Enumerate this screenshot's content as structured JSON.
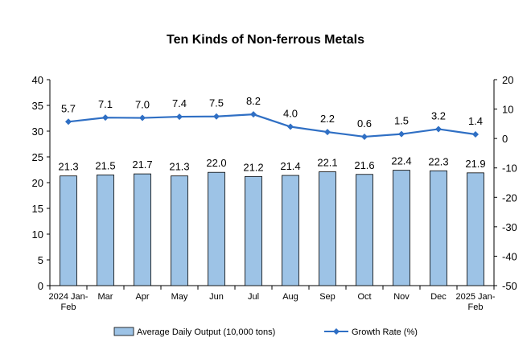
{
  "chart_data": {
    "type": "bar",
    "title": "Ten Kinds of Non-ferrous Metals",
    "categories": [
      [
        "2024 Jan-",
        "Feb"
      ],
      [
        "Mar"
      ],
      [
        "Apr"
      ],
      [
        "May"
      ],
      [
        "Jun"
      ],
      [
        "Jul"
      ],
      [
        "Aug"
      ],
      [
        "Sep"
      ],
      [
        "Oct"
      ],
      [
        "Nov"
      ],
      [
        "Dec"
      ],
      [
        "2025 Jan-",
        "Feb"
      ]
    ],
    "series": [
      {
        "name": "Average Daily Output (10,000 tons)",
        "type": "bar",
        "axis": "left",
        "values": [
          21.3,
          21.5,
          21.7,
          21.3,
          22.0,
          21.2,
          21.4,
          22.1,
          21.6,
          22.4,
          22.3,
          21.9
        ],
        "labels": [
          "21.3",
          "21.5",
          "21.7",
          "21.3",
          "22.0",
          "21.2",
          "21.4",
          "22.1",
          "21.6",
          "22.4",
          "22.3",
          "21.9"
        ]
      },
      {
        "name": "Growth Rate (%)",
        "type": "line",
        "axis": "right",
        "values": [
          5.7,
          7.1,
          7.0,
          7.4,
          7.5,
          8.2,
          4.0,
          2.2,
          0.6,
          1.5,
          3.2,
          1.4
        ],
        "labels": [
          "5.7",
          "7.1",
          "7.0",
          "7.4",
          "7.5",
          "8.2",
          "4.0",
          "2.2",
          "0.6",
          "1.5",
          "3.2",
          "1.4"
        ]
      }
    ],
    "y_left": {
      "min": 0,
      "max": 40,
      "ticks": [
        "0",
        "5",
        "10",
        "15",
        "20",
        "25",
        "30",
        "35",
        "40"
      ]
    },
    "y_right": {
      "min": -50,
      "max": 20,
      "ticks": [
        "-50",
        "-40",
        "-30",
        "-20",
        "-10",
        "0",
        "10",
        "20"
      ]
    },
    "grid": false,
    "legend_position": "bottom",
    "colors": {
      "bar_fill": "#9dc3e6",
      "bar_stroke": "#000000",
      "line": "#2f6fc4"
    }
  }
}
